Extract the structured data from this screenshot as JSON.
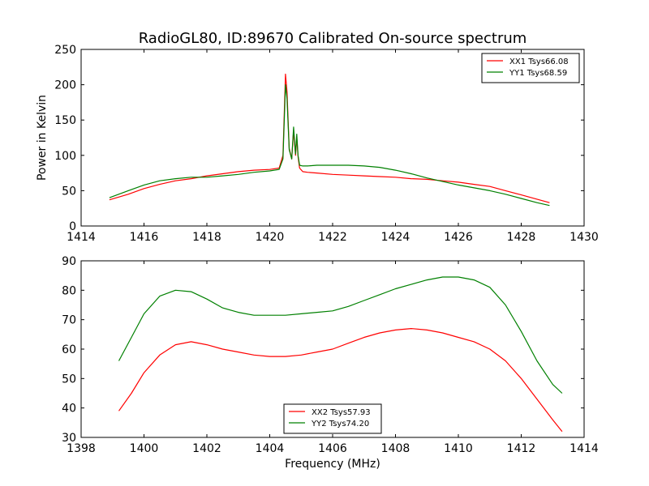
{
  "figure": {
    "title": "RadioGL80, ID:89670 Calibrated On-source spectrum",
    "background": "#ffffff"
  },
  "chart_data": [
    {
      "type": "line",
      "id": "top",
      "xlabel": "",
      "ylabel": "Power in Kelvin",
      "xlim": [
        1414,
        1430
      ],
      "ylim": [
        0,
        250
      ],
      "xticks": [
        1414,
        1416,
        1418,
        1420,
        1422,
        1424,
        1426,
        1428,
        1430
      ],
      "yticks": [
        0,
        50,
        100,
        150,
        200,
        250
      ],
      "grid": false,
      "legend_position": "top-right",
      "series": [
        {
          "name": "XX1 Tsys66.08",
          "color": "#ff0000",
          "x": [
            1414.9,
            1415.5,
            1416.0,
            1416.5,
            1417.0,
            1417.5,
            1418.0,
            1418.5,
            1419.0,
            1419.5,
            1420.0,
            1420.3,
            1420.42,
            1420.5,
            1420.55,
            1420.62,
            1420.7,
            1420.76,
            1420.82,
            1420.86,
            1420.9,
            1420.95,
            1421.05,
            1421.2,
            1421.5,
            1422.0,
            1422.5,
            1423.0,
            1423.5,
            1424.0,
            1424.5,
            1425.0,
            1425.5,
            1426.0,
            1426.5,
            1427.0,
            1427.5,
            1428.0,
            1428.5,
            1428.9
          ],
          "values": [
            37,
            45,
            53,
            59,
            64,
            67,
            71,
            74,
            77,
            79,
            80,
            82,
            100,
            215,
            190,
            110,
            95,
            135,
            100,
            125,
            98,
            82,
            77,
            76,
            75,
            73,
            72,
            71,
            70,
            69,
            67,
            66,
            64,
            62,
            59,
            56,
            50,
            44,
            38,
            33
          ]
        },
        {
          "name": "YY1 Tsys68.59",
          "color": "#008000",
          "x": [
            1414.9,
            1415.5,
            1416.0,
            1416.5,
            1417.0,
            1417.5,
            1418.0,
            1418.5,
            1419.0,
            1419.5,
            1420.0,
            1420.3,
            1420.42,
            1420.5,
            1420.55,
            1420.62,
            1420.7,
            1420.76,
            1420.82,
            1420.86,
            1420.9,
            1420.95,
            1421.05,
            1421.2,
            1421.5,
            1422.0,
            1422.5,
            1423.0,
            1423.5,
            1424.0,
            1424.5,
            1425.0,
            1425.5,
            1426.0,
            1426.5,
            1427.0,
            1427.5,
            1428.0,
            1428.5,
            1428.9
          ],
          "values": [
            40,
            50,
            58,
            64,
            67,
            69,
            69,
            71,
            73,
            76,
            78,
            80,
            95,
            200,
            180,
            108,
            95,
            140,
            102,
            130,
            100,
            86,
            85,
            85,
            86,
            86,
            86,
            85,
            83,
            79,
            74,
            68,
            63,
            58,
            54,
            50,
            45,
            39,
            33,
            29
          ]
        }
      ]
    },
    {
      "type": "line",
      "id": "bottom",
      "xlabel": "Frequency (MHz)",
      "ylabel": "",
      "xlim": [
        1398,
        1414
      ],
      "ylim": [
        30,
        90
      ],
      "xticks": [
        1398,
        1400,
        1402,
        1404,
        1406,
        1408,
        1410,
        1412,
        1414
      ],
      "yticks": [
        30,
        40,
        50,
        60,
        70,
        80,
        90
      ],
      "grid": false,
      "legend_position": "bottom-center",
      "series": [
        {
          "name": "XX2 Tsys57.93",
          "color": "#ff0000",
          "x": [
            1399.2,
            1399.6,
            1400.0,
            1400.5,
            1401.0,
            1401.5,
            1402.0,
            1402.5,
            1403.0,
            1403.5,
            1404.0,
            1404.5,
            1405.0,
            1405.5,
            1406.0,
            1406.5,
            1407.0,
            1407.5,
            1408.0,
            1408.5,
            1409.0,
            1409.5,
            1410.0,
            1410.5,
            1411.0,
            1411.5,
            1412.0,
            1412.5,
            1413.0,
            1413.3
          ],
          "values": [
            39,
            45,
            52,
            58,
            61.5,
            62.5,
            61.5,
            60,
            59,
            58,
            57.5,
            57.5,
            58,
            59,
            60,
            62,
            64,
            65.5,
            66.5,
            67,
            66.5,
            65.5,
            64,
            62.5,
            60,
            56,
            50,
            43,
            36,
            32
          ]
        },
        {
          "name": "YY2 Tsys74.20",
          "color": "#008000",
          "x": [
            1399.2,
            1399.6,
            1400.0,
            1400.5,
            1401.0,
            1401.5,
            1402.0,
            1402.5,
            1403.0,
            1403.5,
            1404.0,
            1404.5,
            1405.0,
            1405.5,
            1406.0,
            1406.5,
            1407.0,
            1407.5,
            1408.0,
            1408.5,
            1409.0,
            1409.5,
            1410.0,
            1410.5,
            1411.0,
            1411.5,
            1412.0,
            1412.5,
            1413.0,
            1413.3
          ],
          "values": [
            56,
            64,
            72,
            78,
            80,
            79.5,
            77,
            74,
            72.5,
            71.5,
            71.5,
            71.5,
            72,
            72.5,
            73,
            74.5,
            76.5,
            78.5,
            80.5,
            82,
            83.5,
            84.5,
            84.5,
            83.5,
            81,
            75,
            66,
            56,
            48,
            45
          ]
        }
      ]
    }
  ]
}
